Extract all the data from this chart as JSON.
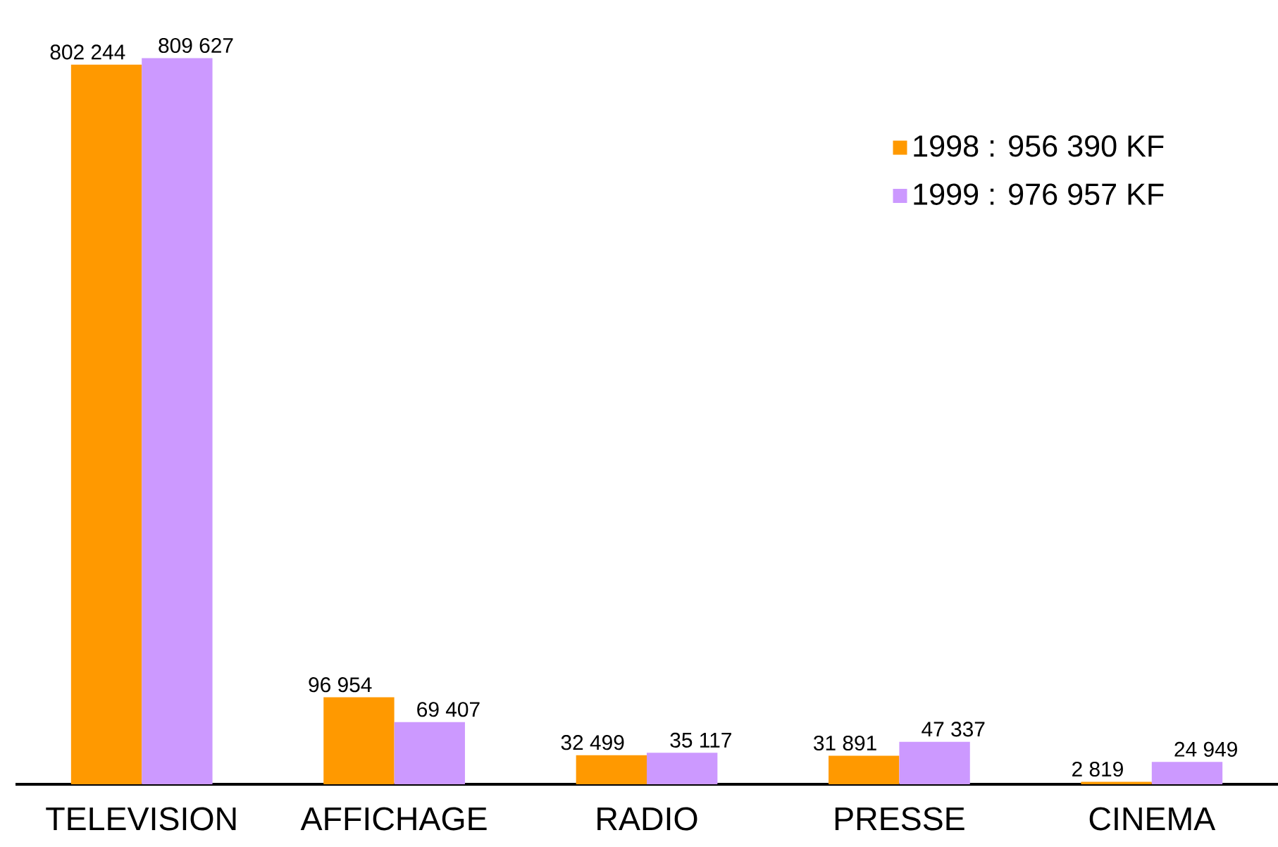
{
  "chart_data": {
    "type": "bar",
    "categories": [
      "TELEVISION",
      "AFFICHAGE",
      "RADIO",
      "PRESSE",
      "CINEMA"
    ],
    "series": [
      {
        "name": "1998 : 956 390 KF",
        "color": "#ff9900",
        "values": [
          802244,
          96954,
          32499,
          31891,
          2819
        ],
        "value_labels": [
          "802 244",
          "96 954",
          "32 499",
          "31 891",
          "2 819"
        ]
      },
      {
        "name": "1999 : 976 957 KF",
        "color": "#cc99ff",
        "values": [
          809627,
          69407,
          35117,
          47337,
          24949
        ],
        "value_labels": [
          "809 627",
          "69 407",
          "35 117",
          "47 337",
          "24 949"
        ]
      }
    ],
    "legend": "top right"
  }
}
